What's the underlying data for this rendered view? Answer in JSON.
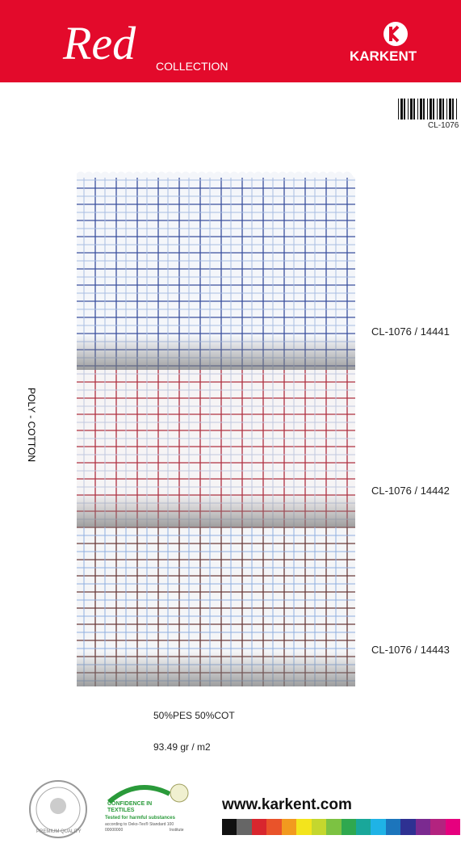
{
  "header": {
    "brand": "Red",
    "collection": "COLLECTION",
    "company": "KARKENT"
  },
  "code": "CL-1076",
  "material": "POLY - COTTON",
  "swatches": [
    {
      "label": "CL-1076 / 14441"
    },
    {
      "label": "CL-1076 / 14442"
    },
    {
      "label": "CL-1076 / 14443"
    }
  ],
  "composition": "50%PES 50%COT",
  "weight": "93.49 gr / m2",
  "badges": {
    "premium": "PREMIUM QUALITY",
    "confidence": "CONFIDENCE IN TEXTILES",
    "tested": "Tested for harmful substances",
    "standard": "according to Oeko-Tex® Standard 100",
    "number": "00000000",
    "institute": "Institute"
  },
  "website": "www.karkent.com"
}
